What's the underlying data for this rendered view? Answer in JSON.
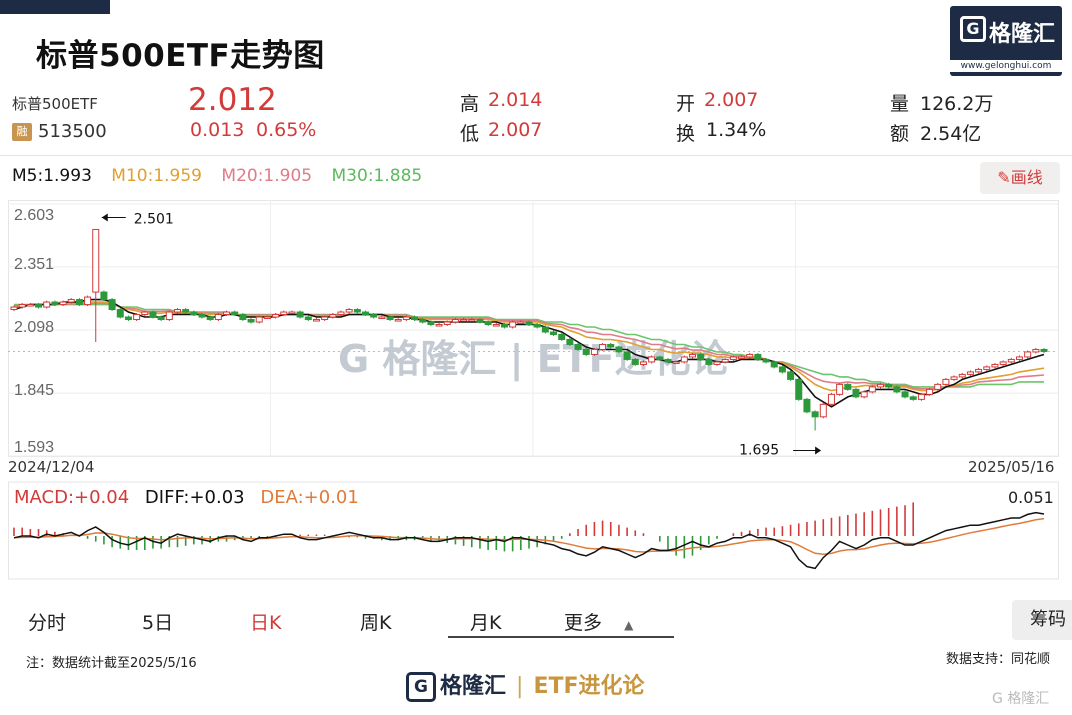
{
  "header": {
    "title": "标普500ETF走势图",
    "logo_text": "格隆汇",
    "logo_glyph": "G",
    "logo_url": "www.gelonghui.com"
  },
  "quote": {
    "name": "标普500ETF",
    "tag": "融",
    "code": "513500",
    "price": "2.012",
    "change": "0.013",
    "change_pct": "0.65%",
    "high_label": "高",
    "high": "2.014",
    "low_label": "低",
    "low": "2.007",
    "open_label": "开",
    "open": "2.007",
    "turnover_label": "换",
    "turnover": "1.34%",
    "volume_label": "量",
    "volume": "126.2万",
    "amount_label": "额",
    "amount": "2.54亿"
  },
  "ma": {
    "m5": "M5:1.993",
    "m10": "M10:1.959",
    "m20": "M20:1.905",
    "m30": "M30:1.885",
    "draw_button": "画线",
    "draw_icon": "pencil-icon"
  },
  "macd": {
    "macd": "MACD:+0.04",
    "diff": "DIFF:+0.03",
    "dea": "DEA:+0.01",
    "max_label": "0.051"
  },
  "tabs": [
    "分时",
    "5日",
    "日K",
    "周K",
    "月K",
    "更多"
  ],
  "active_tab": "日K",
  "chip_button": "筹码",
  "note": "注：数据统计截至2025/5/16",
  "source": "数据支持：同花顺",
  "footer": {
    "logo": "格隆汇",
    "glyph": "G",
    "brand": "ETF进化论"
  },
  "colors": {
    "up": "#d33a3a",
    "down": "#2c9a3a",
    "ma5": "#111111",
    "ma10": "#e0a030",
    "ma20": "#e07b8a",
    "ma30": "#6cc46c"
  },
  "chart_data": {
    "type": "candlestick",
    "x_start": "2024/12/04",
    "x_end": "2025/05/16",
    "y_ticks": [
      "2.603",
      "2.351",
      "2.098",
      "1.845",
      "1.593"
    ],
    "ylim": [
      1.593,
      2.603
    ],
    "annotations": [
      {
        "label": "2.501",
        "value": 2.501,
        "arrow": "left"
      },
      {
        "label": "1.695",
        "value": 1.695,
        "arrow": "right"
      }
    ],
    "close": [
      2.19,
      2.2,
      2.2,
      2.19,
      2.21,
      2.2,
      2.21,
      2.22,
      2.2,
      2.23,
      2.25,
      2.22,
      2.18,
      2.15,
      2.14,
      2.16,
      2.17,
      2.15,
      2.14,
      2.17,
      2.18,
      2.17,
      2.16,
      2.15,
      2.14,
      2.16,
      2.17,
      2.16,
      2.14,
      2.13,
      2.15,
      2.15,
      2.16,
      2.17,
      2.17,
      2.15,
      2.14,
      2.14,
      2.15,
      2.16,
      2.17,
      2.18,
      2.17,
      2.16,
      2.15,
      2.15,
      2.14,
      2.14,
      2.15,
      2.14,
      2.13,
      2.12,
      2.12,
      2.13,
      2.14,
      2.14,
      2.14,
      2.13,
      2.12,
      2.12,
      2.11,
      2.13,
      2.13,
      2.12,
      2.11,
      2.09,
      2.08,
      2.06,
      2.04,
      2.02,
      2.0,
      2.02,
      2.04,
      2.03,
      2.01,
      1.98,
      1.96,
      1.97,
      1.99,
      1.98,
      1.97,
      1.97,
      1.99,
      2.0,
      1.98,
      1.96,
      1.97,
      1.98,
      1.99,
      1.99,
      2.0,
      1.98,
      1.97,
      1.95,
      1.93,
      1.9,
      1.82,
      1.77,
      1.75,
      1.8,
      1.84,
      1.88,
      1.86,
      1.83,
      1.85,
      1.87,
      1.88,
      1.87,
      1.85,
      1.83,
      1.82,
      1.84,
      1.86,
      1.88,
      1.9,
      1.91,
      1.92,
      1.93,
      1.94,
      1.95,
      1.96,
      1.97,
      1.98,
      1.99,
      2.01,
      2.02,
      2.012
    ],
    "ma5": [
      2.18,
      2.19,
      2.2,
      2.2,
      2.2,
      2.2,
      2.21,
      2.21,
      2.21,
      2.22,
      2.22,
      2.22,
      2.21,
      2.19,
      2.17,
      2.16,
      2.15,
      2.15,
      2.15,
      2.16,
      2.16,
      2.16,
      2.16,
      2.16,
      2.15,
      2.15,
      2.16,
      2.16,
      2.15,
      2.15,
      2.15,
      2.15,
      2.15,
      2.16,
      2.16,
      2.16,
      2.16,
      2.15,
      2.15,
      2.15,
      2.15,
      2.16,
      2.16,
      2.16,
      2.16,
      2.16,
      2.15,
      2.15,
      2.15,
      2.14,
      2.14,
      2.13,
      2.13,
      2.13,
      2.13,
      2.13,
      2.13,
      2.13,
      2.13,
      2.13,
      2.12,
      2.12,
      2.12,
      2.12,
      2.12,
      2.11,
      2.1,
      2.09,
      2.07,
      2.05,
      2.03,
      2.02,
      2.02,
      2.02,
      2.02,
      2.02,
      2.0,
      1.99,
      1.98,
      1.98,
      1.97,
      1.97,
      1.98,
      1.98,
      1.98,
      1.98,
      1.97,
      1.97,
      1.97,
      1.98,
      1.98,
      1.98,
      1.98,
      1.97,
      1.96,
      1.94,
      1.91,
      1.87,
      1.83,
      1.81,
      1.79,
      1.81,
      1.83,
      1.84,
      1.85,
      1.86,
      1.86,
      1.86,
      1.86,
      1.86,
      1.85,
      1.84,
      1.84,
      1.85,
      1.87,
      1.88,
      1.9,
      1.91,
      1.92,
      1.93,
      1.94,
      1.95,
      1.96,
      1.97,
      1.98,
      1.99,
      2.0
    ],
    "ma30": [
      2.2,
      2.2,
      2.2,
      2.2,
      2.2,
      2.2,
      2.2,
      2.2,
      2.2,
      2.2,
      2.2,
      2.2,
      2.2,
      2.19,
      2.19,
      2.19,
      2.18,
      2.18,
      2.18,
      2.18,
      2.17,
      2.17,
      2.17,
      2.17,
      2.17,
      2.17,
      2.17,
      2.16,
      2.16,
      2.16,
      2.16,
      2.16,
      2.16,
      2.16,
      2.16,
      2.16,
      2.16,
      2.16,
      2.16,
      2.16,
      2.16,
      2.16,
      2.16,
      2.16,
      2.16,
      2.16,
      2.16,
      2.16,
      2.16,
      2.15,
      2.15,
      2.15,
      2.15,
      2.15,
      2.15,
      2.15,
      2.15,
      2.15,
      2.15,
      2.14,
      2.14,
      2.14,
      2.14,
      2.14,
      2.14,
      2.13,
      2.13,
      2.13,
      2.12,
      2.12,
      2.11,
      2.11,
      2.1,
      2.1,
      2.09,
      2.08,
      2.08,
      2.07,
      2.06,
      2.06,
      2.05,
      2.04,
      2.04,
      2.03,
      2.03,
      2.02,
      2.01,
      2.01,
      2.0,
      2.0,
      1.99,
      1.99,
      1.98,
      1.97,
      1.97,
      1.96,
      1.95,
      1.94,
      1.93,
      1.92,
      1.92,
      1.91,
      1.91,
      1.9,
      1.9,
      1.89,
      1.89,
      1.88,
      1.88,
      1.88,
      1.87,
      1.87,
      1.87,
      1.87,
      1.87,
      1.87,
      1.87,
      1.87,
      1.88,
      1.88,
      1.88,
      1.88,
      1.88,
      1.89,
      1.89,
      1.89,
      1.89
    ],
    "macd_hist": [
      0.006,
      0.006,
      0.005,
      0.005,
      0.004,
      0.003,
      0.002,
      0.001,
      0.0,
      -0.002,
      -0.004,
      -0.006,
      -0.008,
      -0.009,
      -0.01,
      -0.01,
      -0.01,
      -0.009,
      -0.009,
      -0.008,
      -0.008,
      -0.007,
      -0.006,
      -0.006,
      -0.005,
      -0.004,
      -0.004,
      -0.003,
      -0.003,
      -0.002,
      -0.002,
      -0.001,
      -0.001,
      0.0,
      0.0,
      0.001,
      0.001,
      0.001,
      0.001,
      0.0,
      0.0,
      -0.001,
      -0.001,
      -0.002,
      -0.002,
      -0.003,
      -0.003,
      -0.003,
      -0.003,
      -0.003,
      -0.003,
      -0.004,
      -0.004,
      -0.005,
      -0.006,
      -0.007,
      -0.008,
      -0.009,
      -0.01,
      -0.01,
      -0.011,
      -0.011,
      -0.01,
      -0.009,
      -0.008,
      -0.006,
      -0.004,
      -0.002,
      0.002,
      0.005,
      0.008,
      0.01,
      0.011,
      0.01,
      0.008,
      0.006,
      0.004,
      0.002,
      0.0,
      -0.004,
      -0.01,
      -0.014,
      -0.016,
      -0.014,
      -0.01,
      -0.006,
      -0.002,
      0.0,
      0.002,
      0.003,
      0.004,
      0.005,
      0.006,
      0.006,
      0.007,
      0.008,
      0.009,
      0.01,
      0.011,
      0.012,
      0.013,
      0.014,
      0.015,
      0.016,
      0.017,
      0.018,
      0.019,
      0.02,
      0.021,
      0.022,
      0.024
    ]
  }
}
